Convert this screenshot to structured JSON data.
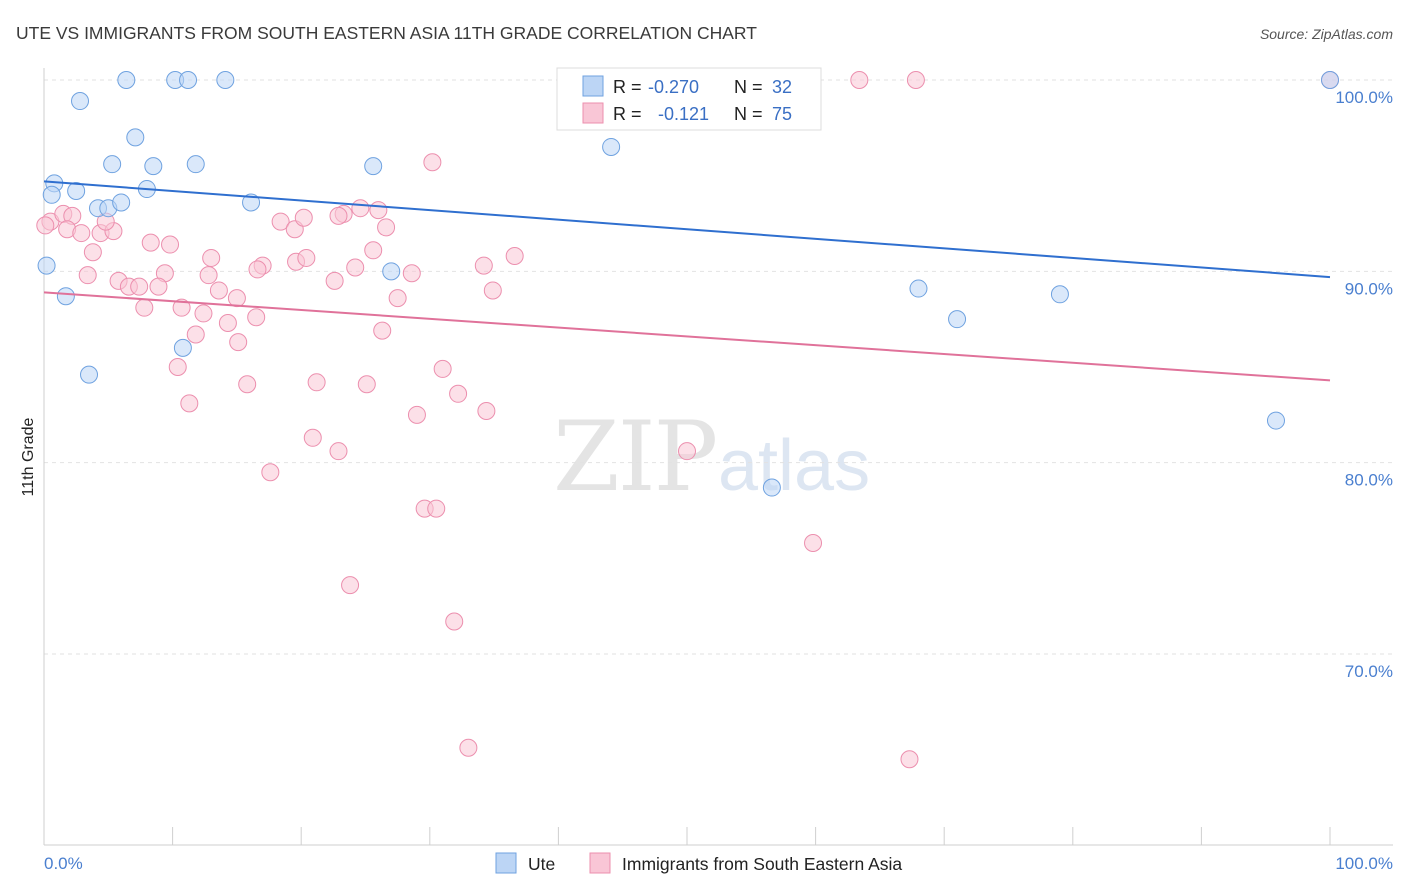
{
  "chart_data": {
    "type": "scatter",
    "title": "UTE VS IMMIGRANTS FROM SOUTH EASTERN ASIA 11TH GRADE CORRELATION CHART",
    "source": "Source: ZipAtlas.com",
    "ylabel": "11th Grade",
    "xlim": [
      0,
      100
    ],
    "ylim": [
      60,
      100
    ],
    "y_ticks": [
      {
        "value": 100,
        "label": "100.0%"
      },
      {
        "value": 90,
        "label": "90.0%"
      },
      {
        "value": 80,
        "label": "80.0%"
      },
      {
        "value": 70,
        "label": "70.0%"
      }
    ],
    "x_tick_labels": {
      "left": "0.0%",
      "right": "100.0%"
    },
    "grid": true,
    "legend_position": "bottom",
    "watermark": {
      "zip": "ZIP",
      "atlas": "atlas"
    },
    "stats": [
      {
        "r_label": "R =",
        "r_value": "-0.270",
        "n_label": "N =",
        "n_value": "32"
      },
      {
        "r_label": "R =",
        "r_value": "-0.121",
        "n_label": "N =",
        "n_value": "75"
      }
    ],
    "series": [
      {
        "name": "Ute",
        "color": "#6fa2e0",
        "fill": "#bcd5f5",
        "trend_color": "#2f6fcf",
        "trend": {
          "x": [
            0,
            100
          ],
          "y": [
            94.7,
            89.7
          ]
        },
        "points": [
          {
            "x": 6.4,
            "y": 100
          },
          {
            "x": 10.2,
            "y": 100
          },
          {
            "x": 11.2,
            "y": 100
          },
          {
            "x": 14.1,
            "y": 100
          },
          {
            "x": 2.8,
            "y": 98.9
          },
          {
            "x": 7.1,
            "y": 97.0
          },
          {
            "x": 5.3,
            "y": 95.6
          },
          {
            "x": 8.5,
            "y": 95.5
          },
          {
            "x": 11.8,
            "y": 95.6
          },
          {
            "x": 25.6,
            "y": 95.5
          },
          {
            "x": 44.1,
            "y": 96.5
          },
          {
            "x": 0.8,
            "y": 94.6
          },
          {
            "x": 2.5,
            "y": 94.2
          },
          {
            "x": 8.0,
            "y": 94.3
          },
          {
            "x": 4.2,
            "y": 93.3
          },
          {
            "x": 5.0,
            "y": 93.3
          },
          {
            "x": 6.0,
            "y": 93.6
          },
          {
            "x": 16.1,
            "y": 93.6
          },
          {
            "x": 0.2,
            "y": 90.3
          },
          {
            "x": 27.0,
            "y": 90.0
          },
          {
            "x": 1.7,
            "y": 88.7
          },
          {
            "x": 68.0,
            "y": 89.1
          },
          {
            "x": 79.0,
            "y": 88.8
          },
          {
            "x": 71.0,
            "y": 87.5
          },
          {
            "x": 10.8,
            "y": 86.0
          },
          {
            "x": 3.5,
            "y": 84.6
          },
          {
            "x": 95.8,
            "y": 82.2
          },
          {
            "x": 56.6,
            "y": 78.7
          },
          {
            "x": 43.0,
            "y": 100
          },
          {
            "x": 54.0,
            "y": 100
          },
          {
            "x": 100,
            "y": 100
          },
          {
            "x": 0.6,
            "y": 94.0
          }
        ]
      },
      {
        "name": "Immigrants from South Eastern Asia",
        "color": "#ec8fae",
        "fill": "#f9c6d6",
        "trend_color": "#e0729a",
        "trend": {
          "x": [
            0,
            100
          ],
          "y": [
            88.9,
            84.3
          ]
        },
        "points": [
          {
            "x": 43.0,
            "y": 100
          },
          {
            "x": 63.4,
            "y": 100
          },
          {
            "x": 67.8,
            "y": 100
          },
          {
            "x": 100,
            "y": 100
          },
          {
            "x": 30.2,
            "y": 95.7
          },
          {
            "x": 0.5,
            "y": 92.6
          },
          {
            "x": 1.5,
            "y": 93.0
          },
          {
            "x": 2.2,
            "y": 92.9
          },
          {
            "x": 1.8,
            "y": 92.2
          },
          {
            "x": 2.9,
            "y": 92.0
          },
          {
            "x": 4.4,
            "y": 92.0
          },
          {
            "x": 5.4,
            "y": 92.1
          },
          {
            "x": 4.8,
            "y": 92.6
          },
          {
            "x": 18.4,
            "y": 92.6
          },
          {
            "x": 19.5,
            "y": 92.2
          },
          {
            "x": 20.2,
            "y": 92.8
          },
          {
            "x": 23.3,
            "y": 93.0
          },
          {
            "x": 22.9,
            "y": 92.9
          },
          {
            "x": 26.0,
            "y": 93.2
          },
          {
            "x": 24.6,
            "y": 93.3
          },
          {
            "x": 26.6,
            "y": 92.3
          },
          {
            "x": 8.3,
            "y": 91.5
          },
          {
            "x": 9.8,
            "y": 91.4
          },
          {
            "x": 3.8,
            "y": 91.0
          },
          {
            "x": 25.6,
            "y": 91.1
          },
          {
            "x": 36.6,
            "y": 90.8
          },
          {
            "x": 13.0,
            "y": 90.7
          },
          {
            "x": 19.6,
            "y": 90.5
          },
          {
            "x": 20.4,
            "y": 90.7
          },
          {
            "x": 17.0,
            "y": 90.3
          },
          {
            "x": 16.6,
            "y": 90.1
          },
          {
            "x": 24.2,
            "y": 90.2
          },
          {
            "x": 34.2,
            "y": 90.3
          },
          {
            "x": 3.4,
            "y": 89.8
          },
          {
            "x": 9.4,
            "y": 89.9
          },
          {
            "x": 12.8,
            "y": 89.8
          },
          {
            "x": 28.6,
            "y": 89.9
          },
          {
            "x": 22.6,
            "y": 89.5
          },
          {
            "x": 5.8,
            "y": 89.5
          },
          {
            "x": 6.6,
            "y": 89.2
          },
          {
            "x": 7.4,
            "y": 89.2
          },
          {
            "x": 8.9,
            "y": 89.2
          },
          {
            "x": 13.6,
            "y": 89.0
          },
          {
            "x": 34.9,
            "y": 89.0
          },
          {
            "x": 15.0,
            "y": 88.6
          },
          {
            "x": 27.5,
            "y": 88.6
          },
          {
            "x": 7.8,
            "y": 88.1
          },
          {
            "x": 10.7,
            "y": 88.1
          },
          {
            "x": 12.4,
            "y": 87.8
          },
          {
            "x": 16.5,
            "y": 87.6
          },
          {
            "x": 14.3,
            "y": 87.3
          },
          {
            "x": 11.8,
            "y": 86.7
          },
          {
            "x": 26.3,
            "y": 86.9
          },
          {
            "x": 15.1,
            "y": 86.3
          },
          {
            "x": 10.4,
            "y": 85.0
          },
          {
            "x": 31.0,
            "y": 84.9
          },
          {
            "x": 15.8,
            "y": 84.1
          },
          {
            "x": 21.2,
            "y": 84.2
          },
          {
            "x": 25.1,
            "y": 84.1
          },
          {
            "x": 32.2,
            "y": 83.6
          },
          {
            "x": 11.3,
            "y": 83.1
          },
          {
            "x": 29.0,
            "y": 82.5
          },
          {
            "x": 34.4,
            "y": 82.7
          },
          {
            "x": 20.9,
            "y": 81.3
          },
          {
            "x": 22.9,
            "y": 80.6
          },
          {
            "x": 50.0,
            "y": 80.6
          },
          {
            "x": 17.6,
            "y": 79.5
          },
          {
            "x": 29.6,
            "y": 77.6
          },
          {
            "x": 30.5,
            "y": 77.6
          },
          {
            "x": 59.8,
            "y": 75.8
          },
          {
            "x": 23.8,
            "y": 73.6
          },
          {
            "x": 31.9,
            "y": 71.7
          },
          {
            "x": 33.0,
            "y": 65.1
          },
          {
            "x": 67.3,
            "y": 64.5
          },
          {
            "x": 0.1,
            "y": 92.4
          }
        ]
      }
    ]
  }
}
